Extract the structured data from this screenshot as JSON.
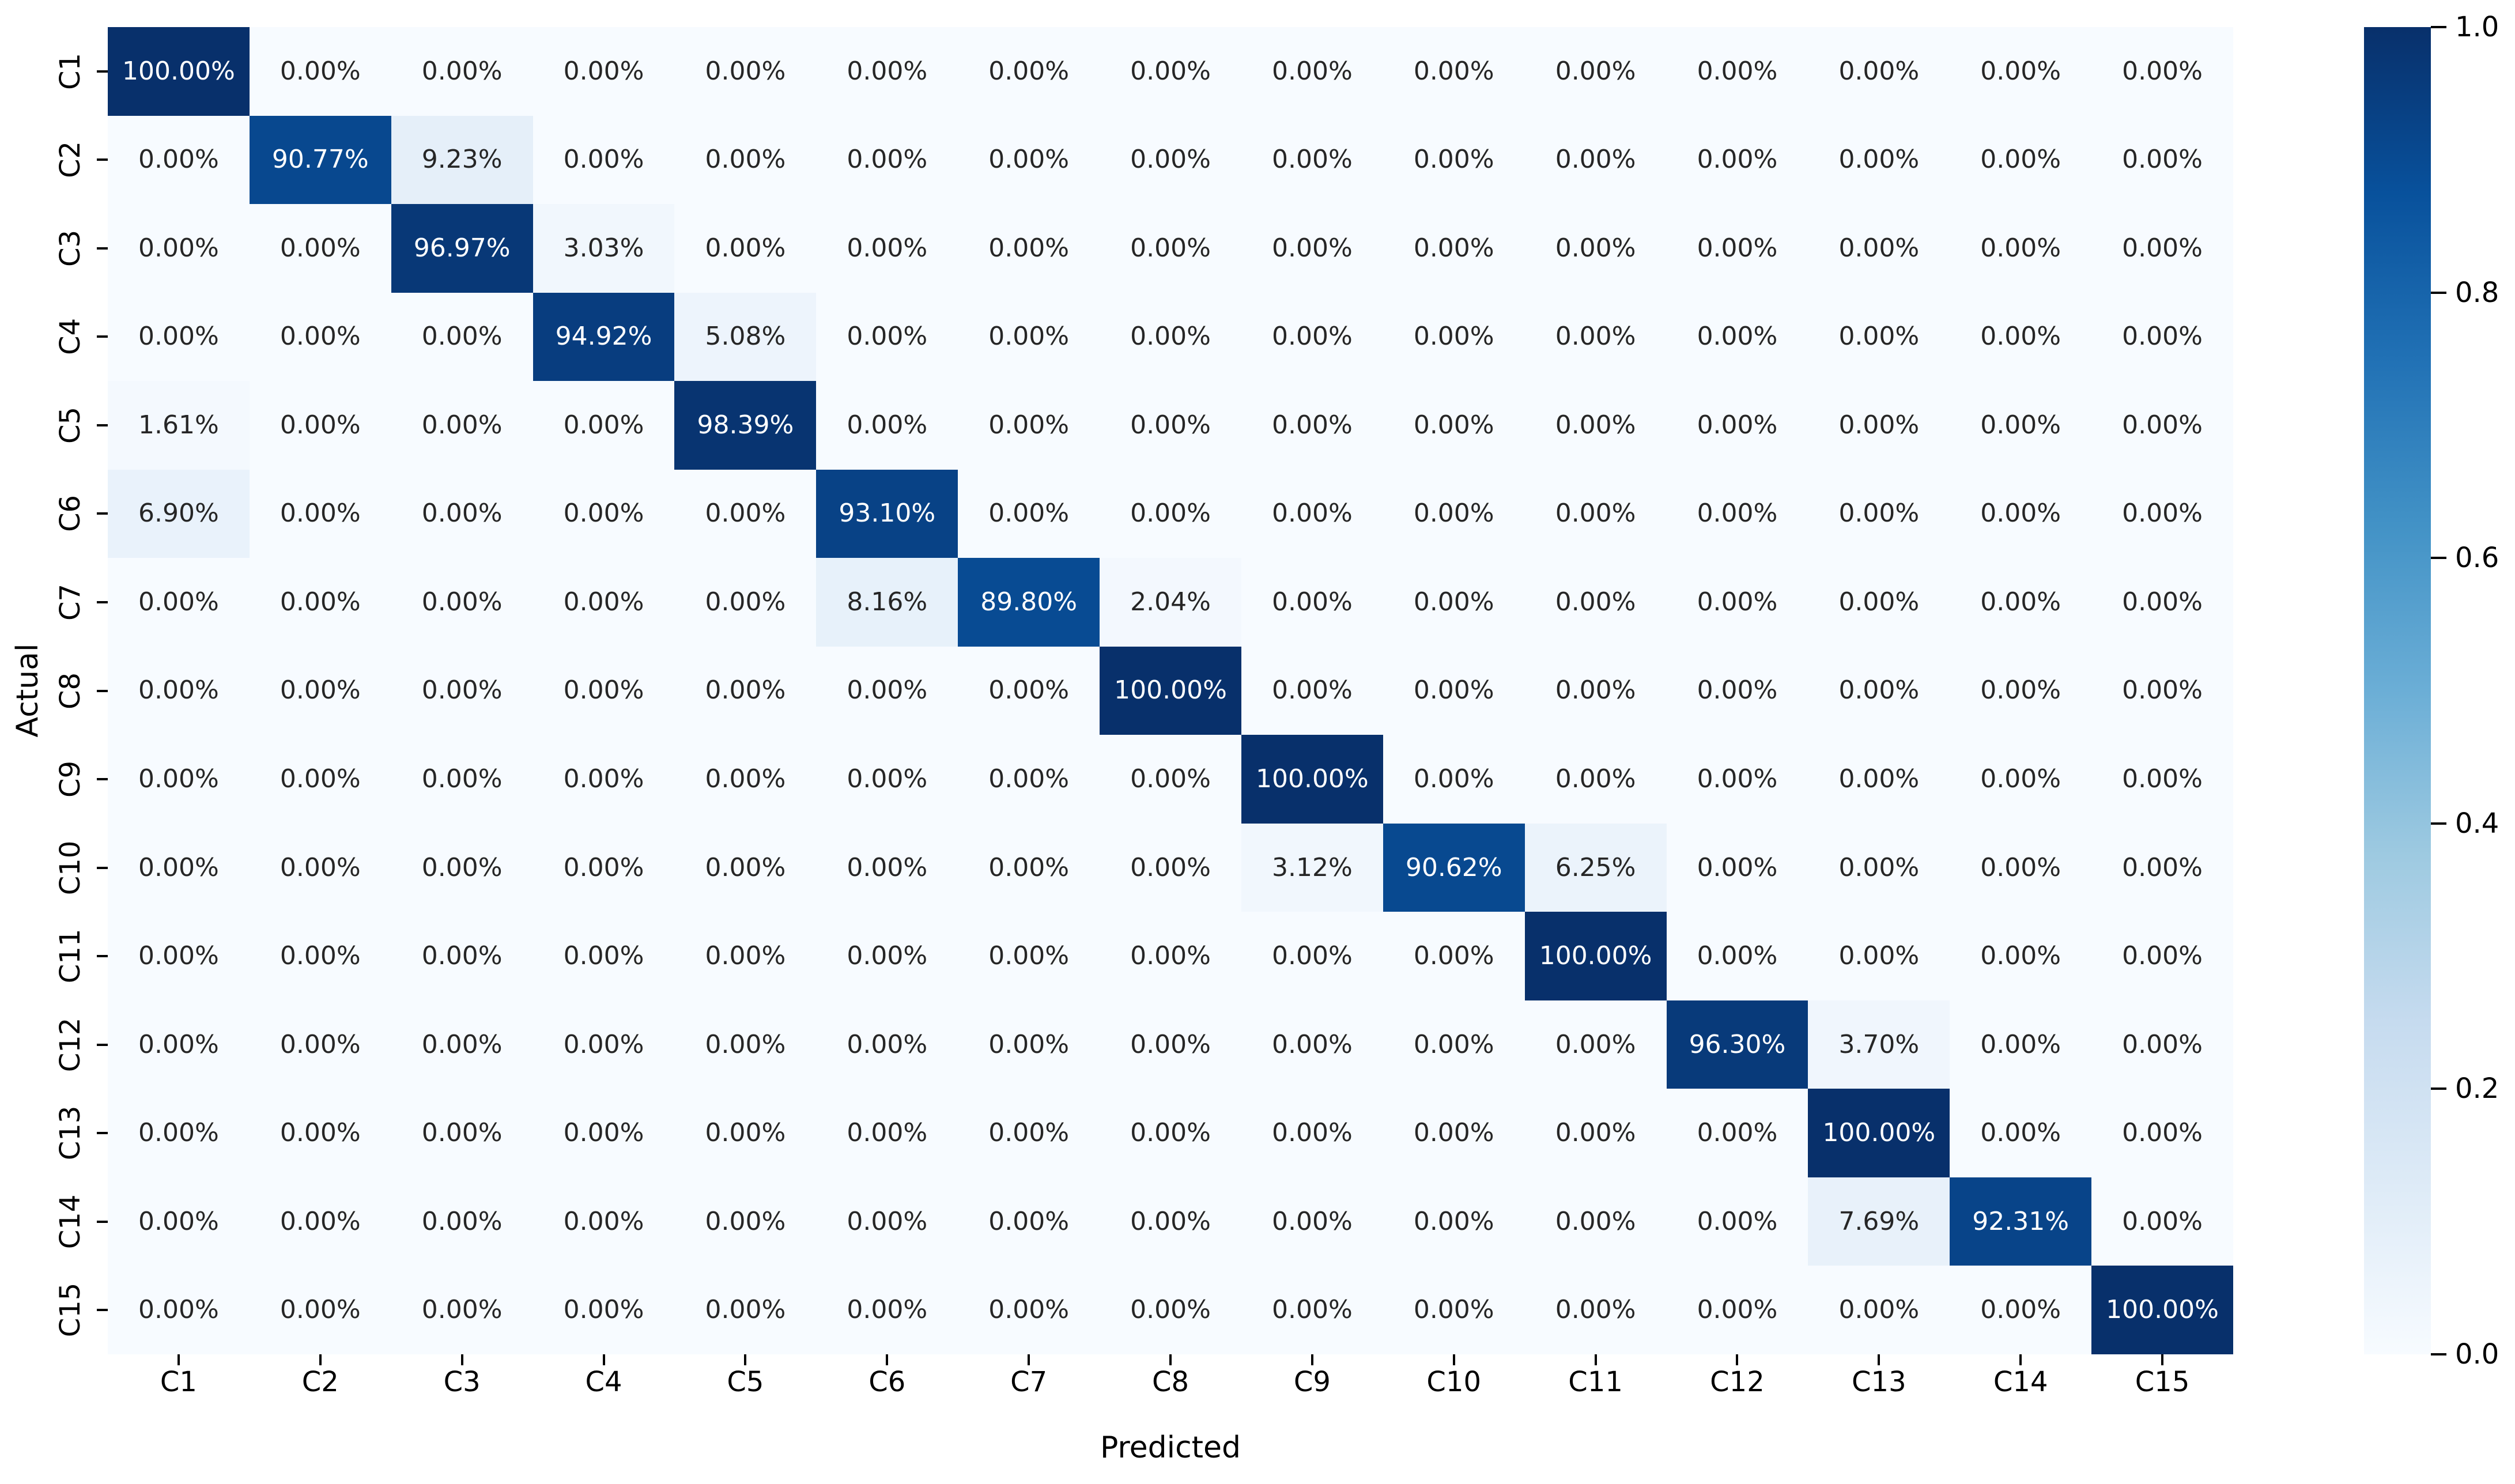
{
  "figure": {
    "background": "#ffffff"
  },
  "chart_data": {
    "type": "heatmap",
    "title": "",
    "xlabel": "Predicted",
    "ylabel": "Actual",
    "x_categories": [
      "C1",
      "C2",
      "C3",
      "C4",
      "C5",
      "C6",
      "C7",
      "C8",
      "C9",
      "C10",
      "C11",
      "C12",
      "C13",
      "C14",
      "C15"
    ],
    "y_categories": [
      "C1",
      "C2",
      "C3",
      "C4",
      "C5",
      "C6",
      "C7",
      "C8",
      "C9",
      "C10",
      "C11",
      "C12",
      "C13",
      "C14",
      "C15"
    ],
    "values_percent": [
      [
        100.0,
        0.0,
        0.0,
        0.0,
        0.0,
        0.0,
        0.0,
        0.0,
        0.0,
        0.0,
        0.0,
        0.0,
        0.0,
        0.0,
        0.0
      ],
      [
        0.0,
        90.77,
        9.23,
        0.0,
        0.0,
        0.0,
        0.0,
        0.0,
        0.0,
        0.0,
        0.0,
        0.0,
        0.0,
        0.0,
        0.0
      ],
      [
        0.0,
        0.0,
        96.97,
        3.03,
        0.0,
        0.0,
        0.0,
        0.0,
        0.0,
        0.0,
        0.0,
        0.0,
        0.0,
        0.0,
        0.0
      ],
      [
        0.0,
        0.0,
        0.0,
        94.92,
        5.08,
        0.0,
        0.0,
        0.0,
        0.0,
        0.0,
        0.0,
        0.0,
        0.0,
        0.0,
        0.0
      ],
      [
        1.61,
        0.0,
        0.0,
        0.0,
        98.39,
        0.0,
        0.0,
        0.0,
        0.0,
        0.0,
        0.0,
        0.0,
        0.0,
        0.0,
        0.0
      ],
      [
        6.9,
        0.0,
        0.0,
        0.0,
        0.0,
        93.1,
        0.0,
        0.0,
        0.0,
        0.0,
        0.0,
        0.0,
        0.0,
        0.0,
        0.0
      ],
      [
        0.0,
        0.0,
        0.0,
        0.0,
        0.0,
        8.16,
        89.8,
        2.04,
        0.0,
        0.0,
        0.0,
        0.0,
        0.0,
        0.0,
        0.0
      ],
      [
        0.0,
        0.0,
        0.0,
        0.0,
        0.0,
        0.0,
        0.0,
        100.0,
        0.0,
        0.0,
        0.0,
        0.0,
        0.0,
        0.0,
        0.0
      ],
      [
        0.0,
        0.0,
        0.0,
        0.0,
        0.0,
        0.0,
        0.0,
        0.0,
        100.0,
        0.0,
        0.0,
        0.0,
        0.0,
        0.0,
        0.0
      ],
      [
        0.0,
        0.0,
        0.0,
        0.0,
        0.0,
        0.0,
        0.0,
        0.0,
        3.12,
        90.62,
        6.25,
        0.0,
        0.0,
        0.0,
        0.0
      ],
      [
        0.0,
        0.0,
        0.0,
        0.0,
        0.0,
        0.0,
        0.0,
        0.0,
        0.0,
        0.0,
        100.0,
        0.0,
        0.0,
        0.0,
        0.0
      ],
      [
        0.0,
        0.0,
        0.0,
        0.0,
        0.0,
        0.0,
        0.0,
        0.0,
        0.0,
        0.0,
        0.0,
        96.3,
        3.7,
        0.0,
        0.0
      ],
      [
        0.0,
        0.0,
        0.0,
        0.0,
        0.0,
        0.0,
        0.0,
        0.0,
        0.0,
        0.0,
        0.0,
        0.0,
        100.0,
        0.0,
        0.0
      ],
      [
        0.0,
        0.0,
        0.0,
        0.0,
        0.0,
        0.0,
        0.0,
        0.0,
        0.0,
        0.0,
        0.0,
        0.0,
        7.69,
        92.31,
        0.0
      ],
      [
        0.0,
        0.0,
        0.0,
        0.0,
        0.0,
        0.0,
        0.0,
        0.0,
        0.0,
        0.0,
        0.0,
        0.0,
        0.0,
        0.0,
        100.0
      ]
    ],
    "cell_label_suffix": "%",
    "cell_label_decimals": 2,
    "colormap": "Blues",
    "vmin": 0.0,
    "vmax": 1.0,
    "colorbar_ticks": [
      1.0,
      0.8,
      0.6,
      0.4,
      0.2,
      0.0
    ],
    "colorbar_tick_labels": [
      "1.0",
      "0.8",
      "0.6",
      "0.4",
      "0.2",
      "0.0"
    ],
    "legend_position": "right",
    "grid": false,
    "colors": {
      "annotation_on_dark": "#ffffff",
      "annotation_on_light": "#262626",
      "cmap_min": "#f7fbff",
      "cmap_max": "#08306b",
      "tick_color": "#000000"
    }
  }
}
